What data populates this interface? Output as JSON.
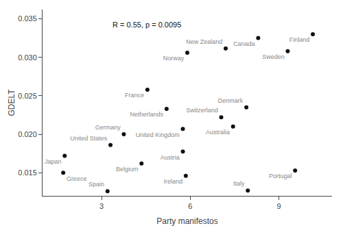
{
  "chart_data": {
    "type": "scatter",
    "labels": [
      "Greece",
      "Japan",
      "Spain",
      "United States",
      "Germany",
      "Belgium",
      "France",
      "Netherlands",
      "United Kingdom",
      "Austria",
      "Ireland",
      "Norway",
      "Switzerland",
      "New Zealand",
      "Australia",
      "Denmark",
      "Italy",
      "Canada",
      "Sweden",
      "Portugal",
      "Finland"
    ],
    "x": [
      1.7,
      1.75,
      3.2,
      3.3,
      3.75,
      4.35,
      4.55,
      5.2,
      5.75,
      5.75,
      5.85,
      5.9,
      7.05,
      7.2,
      7.45,
      7.9,
      7.95,
      8.3,
      9.3,
      9.55,
      10.15
    ],
    "values": [
      0.015,
      0.0172,
      0.0126,
      0.0186,
      0.02,
      0.0162,
      0.0258,
      0.0233,
      0.0207,
      0.01775,
      0.0146,
      0.0306,
      0.0222,
      0.03115,
      0.021,
      0.0235,
      0.0127,
      0.0325,
      0.0308,
      0.0153,
      0.033
    ],
    "color": "#111111",
    "xlabel": "Party manifestos",
    "ylabel": "GDELT",
    "annotations": [
      {
        "text": "R = 0.55, p = 0.0095"
      }
    ],
    "xlim": [
      1.0,
      10.8
    ],
    "ylim": [
      0.012,
      0.0362
    ],
    "xticks": [
      3,
      6,
      9
    ],
    "yticks": [
      0.015,
      {
        "value": 0.02,
        "label": "0.020"
      },
      0.025,
      {
        "value": 0.03,
        "label": "0.030"
      },
      0.035
    ],
    "grid": false
  }
}
